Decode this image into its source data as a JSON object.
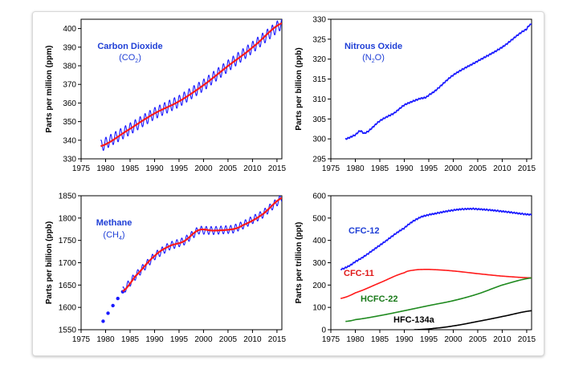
{
  "colors": {
    "blue": "#1a1aff",
    "red": "#ff1a1a",
    "green": "#1f8a1f",
    "black": "#000000",
    "label_blue": "#1f3fd6",
    "label_red": "#e01818",
    "label_green": "#1a7a1a"
  },
  "chart_data": [
    {
      "id": "co2",
      "type": "line",
      "ylabel": "Parts per million (ppm)",
      "xlim": [
        1975,
        2016
      ],
      "ylim": [
        330,
        405
      ],
      "xticks": [
        1975,
        1980,
        1985,
        1990,
        1995,
        2000,
        2005,
        2010,
        2015
      ],
      "yticks": [
        330,
        340,
        350,
        360,
        370,
        380,
        390,
        400
      ],
      "label_lines": [
        {
          "text": "Carbon Dioxide",
          "sub": ""
        },
        {
          "text": "(CO",
          "sub": "2",
          "tail": ")"
        }
      ],
      "series": [
        {
          "style": "monthly",
          "color": "blue",
          "seasonal_amp": 3.2,
          "x": [
            1979,
            1985,
            1990,
            1995,
            2000,
            2005,
            2010,
            2016
          ],
          "y": [
            336.8,
            346.1,
            354.4,
            360.9,
            369.6,
            379.9,
            389.9,
            402.9
          ]
        },
        {
          "style": "trend",
          "color": "red",
          "x": [
            1979,
            1985,
            1990,
            1995,
            2000,
            2005,
            2010,
            2016
          ],
          "y": [
            336.8,
            346.1,
            354.4,
            360.9,
            369.6,
            379.9,
            389.9,
            402.9
          ]
        }
      ]
    },
    {
      "id": "n2o",
      "type": "line",
      "ylabel": "Parts per billion (ppb)",
      "xlim": [
        1975,
        2016
      ],
      "ylim": [
        295,
        330
      ],
      "xticks": [
        1975,
        1980,
        1985,
        1990,
        1995,
        2000,
        2005,
        2010,
        2015
      ],
      "yticks": [
        295,
        300,
        305,
        310,
        315,
        320,
        325,
        330
      ],
      "label_lines": [
        {
          "text": "Nitrous Oxide",
          "sub": ""
        },
        {
          "text": "(N",
          "sub": "2",
          "tail": "O)"
        }
      ],
      "series": [
        {
          "style": "wiggle",
          "color": "blue",
          "x": [
            1978,
            1980,
            1981,
            1982,
            1985,
            1988,
            1990,
            1993,
            1995,
            2000,
            2005,
            2010,
            2015,
            2016
          ],
          "y": [
            300,
            301,
            302,
            301.5,
            304.5,
            306.5,
            308.5,
            310,
            311,
            316,
            319.5,
            323,
            327.5,
            328.8
          ]
        }
      ]
    },
    {
      "id": "ch4",
      "type": "line",
      "ylabel": "Parts per billion (ppb)",
      "xlim": [
        1975,
        2016
      ],
      "ylim": [
        1550,
        1850
      ],
      "xticks": [
        1975,
        1980,
        1985,
        1990,
        1995,
        2000,
        2005,
        2010,
        2015
      ],
      "yticks": [
        1550,
        1600,
        1650,
        1700,
        1750,
        1800,
        1850
      ],
      "label_lines": [
        {
          "text": "Methane",
          "sub": ""
        },
        {
          "text": "(CH",
          "sub": "4",
          "tail": ")"
        }
      ],
      "early_points": {
        "color": "blue",
        "x": [
          1979.5,
          1980.5,
          1981.5,
          1982.5,
          1983.5
        ],
        "y": [
          1569,
          1587,
          1604,
          1620,
          1635
        ]
      },
      "series": [
        {
          "style": "monthly",
          "color": "blue",
          "seasonal_amp": 9,
          "x": [
            1983.5,
            1986,
            1990,
            1993,
            1996,
            1999,
            2002,
            2006,
            2008,
            2012,
            2016
          ],
          "y": [
            1636,
            1669,
            1715,
            1737,
            1748,
            1773,
            1772,
            1775,
            1784,
            1808,
            1845
          ]
        },
        {
          "style": "trend",
          "color": "red",
          "x": [
            1983.5,
            1986,
            1990,
            1993,
            1996,
            1999,
            2002,
            2006,
            2008,
            2012,
            2016
          ],
          "y": [
            1636,
            1669,
            1715,
            1737,
            1748,
            1773,
            1772,
            1775,
            1784,
            1808,
            1845
          ]
        }
      ]
    },
    {
      "id": "cfc",
      "type": "line",
      "ylabel": "Parts per trillion (ppt)",
      "xlim": [
        1975,
        2016
      ],
      "ylim": [
        0,
        600
      ],
      "xticks": [
        1975,
        1980,
        1985,
        1990,
        1995,
        2000,
        2005,
        2010,
        2015
      ],
      "yticks": [
        0,
        100,
        200,
        300,
        400,
        500,
        600
      ],
      "series": [
        {
          "name": "CFC-12",
          "style": "wiggle",
          "color": "blue",
          "x": [
            1977,
            1980,
            1985,
            1990,
            1993,
            1995,
            2000,
            2003,
            2005,
            2010,
            2016
          ],
          "y": [
            270,
            305,
            378,
            455,
            500,
            515,
            535,
            541,
            540,
            530,
            515
          ]
        },
        {
          "name": "CFC-11",
          "style": "smooth",
          "color": "red",
          "x": [
            1977,
            1980,
            1985,
            1990,
            1992,
            1994,
            1996,
            2000,
            2005,
            2010,
            2016
          ],
          "y": [
            140,
            165,
            210,
            255,
            267,
            270,
            269,
            263,
            251,
            240,
            232
          ]
        },
        {
          "name": "HCFC-22",
          "style": "smooth",
          "color": "green",
          "x": [
            1978,
            1980,
            1985,
            1990,
            1995,
            2000,
            2005,
            2010,
            2016
          ],
          "y": [
            37,
            45,
            63,
            85,
            108,
            130,
            160,
            200,
            232
          ]
        },
        {
          "name": "HFC-134a",
          "style": "smooth",
          "color": "black",
          "x": [
            1992,
            1994,
            1996,
            2000,
            2005,
            2010,
            2016
          ],
          "y": [
            0,
            2,
            6,
            17,
            37,
            59,
            85
          ]
        }
      ]
    }
  ]
}
